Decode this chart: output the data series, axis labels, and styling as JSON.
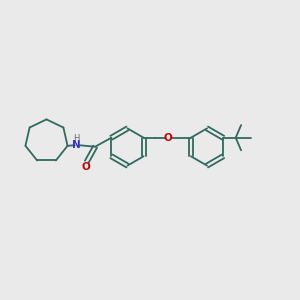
{
  "background_color": "#eaeaea",
  "bond_color": "#2f6b5e",
  "n_color": "#3333cc",
  "o_color": "#cc0000",
  "h_color": "#666666",
  "figsize": [
    3.0,
    3.0
  ],
  "dpi": 100,
  "xlim": [
    0,
    10
  ],
  "ylim": [
    2,
    8
  ]
}
